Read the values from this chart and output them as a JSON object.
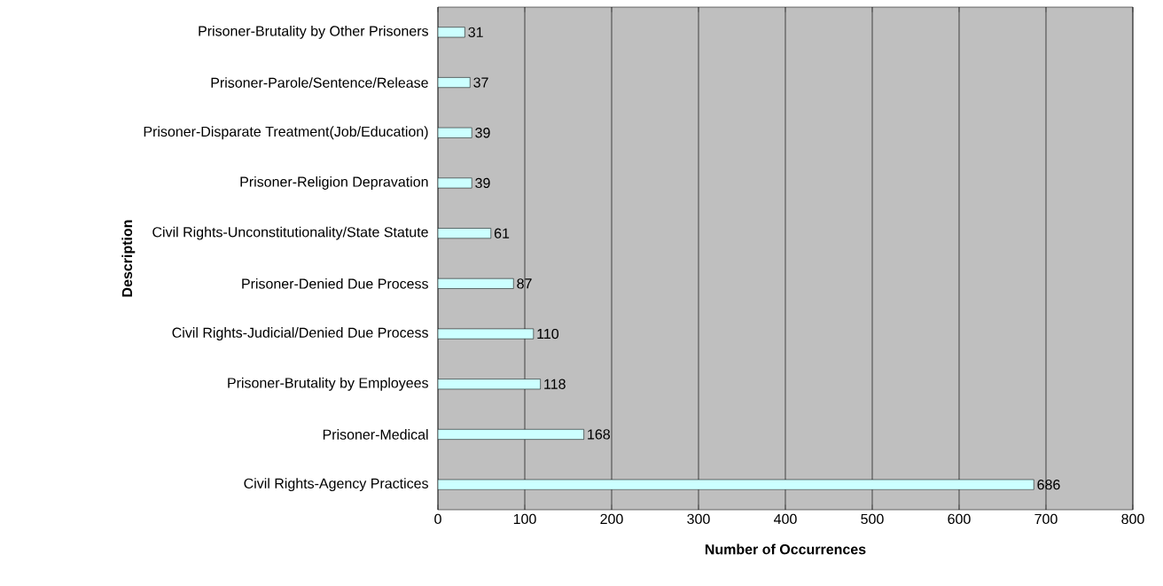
{
  "chart_data": {
    "type": "bar",
    "orientation": "horizontal",
    "xlabel": "Number of Occurrences",
    "ylabel": "Description",
    "categories": [
      "Prisoner-Brutality by Other Prisoners",
      "Prisoner-Parole/Sentence/Release",
      "Prisoner-Disparate Treatment(Job/Education)",
      "Prisoner-Religion Depravation",
      "Civil Rights-Unconstitutionality/State Statute",
      "Prisoner-Denied Due Process",
      "Civil Rights-Judicial/Denied Due Process",
      "Prisoner-Brutality by Employees",
      "Prisoner-Medical",
      "Civil Rights-Agency Practices"
    ],
    "values": [
      31,
      37,
      39,
      39,
      61,
      87,
      110,
      118,
      168,
      686
    ],
    "color": "#ccffff",
    "data_labels": true,
    "grid": "x",
    "xlim": [
      0,
      800
    ],
    "xticks": [
      0,
      100,
      200,
      300,
      400,
      500,
      600,
      700,
      800
    ]
  }
}
